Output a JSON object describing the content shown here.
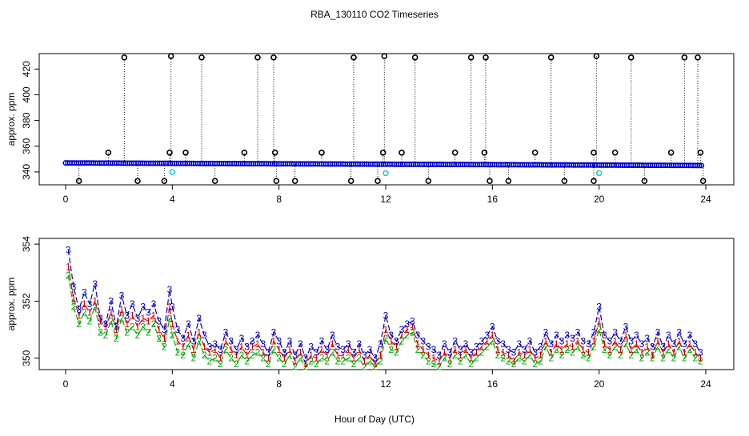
{
  "page": {
    "title": "RBA_130110  CO2 Timeseries",
    "xlabel": "Hour of Day (UTC)"
  },
  "colors": {
    "black": "#000000",
    "blue": "#0000cc",
    "green": "#00aa00",
    "red": "#dd0000",
    "cyan": "#00cccc"
  },
  "chart_data": [
    {
      "type": "scatter",
      "ylabel": "approx. ppm",
      "xlim": [
        0,
        24
      ],
      "ylim": [
        330,
        432
      ],
      "x_ticks": [
        "0",
        "4",
        "8",
        "12",
        "16",
        "20",
        "24"
      ],
      "y_ticks": [
        "340",
        "360",
        "380",
        "400",
        "420"
      ],
      "baseline": {
        "start": 347,
        "end": 345
      },
      "outliers_high": [
        [
          1.6,
          355
        ],
        [
          2.2,
          429
        ],
        [
          3.9,
          355
        ],
        [
          3.95,
          430
        ],
        [
          4.5,
          355
        ],
        [
          5.1,
          429
        ],
        [
          6.7,
          355
        ],
        [
          7.2,
          429
        ],
        [
          7.8,
          429
        ],
        [
          7.85,
          355
        ],
        [
          9.6,
          355
        ],
        [
          10.8,
          429
        ],
        [
          11.9,
          355
        ],
        [
          11.95,
          430
        ],
        [
          12.6,
          355
        ],
        [
          13.1,
          429
        ],
        [
          14.6,
          355
        ],
        [
          15.2,
          429
        ],
        [
          15.7,
          355
        ],
        [
          15.75,
          429
        ],
        [
          17.6,
          355
        ],
        [
          18.2,
          429
        ],
        [
          19.8,
          355
        ],
        [
          19.9,
          430
        ],
        [
          20.6,
          355
        ],
        [
          21.2,
          429
        ],
        [
          22.7,
          355
        ],
        [
          23.2,
          429
        ],
        [
          23.7,
          429
        ],
        [
          23.8,
          355
        ]
      ],
      "outliers_low": [
        [
          0.5,
          333
        ],
        [
          2.7,
          333
        ],
        [
          3.7,
          333
        ],
        [
          5.6,
          333
        ],
        [
          7.9,
          333
        ],
        [
          8.6,
          333
        ],
        [
          10.7,
          333
        ],
        [
          11.7,
          333
        ],
        [
          13.6,
          333
        ],
        [
          15.9,
          333
        ],
        [
          16.6,
          333
        ],
        [
          18.7,
          333
        ],
        [
          19.8,
          333
        ],
        [
          21.7,
          333
        ],
        [
          23.9,
          333
        ]
      ],
      "cyan_points": [
        [
          4.0,
          340
        ],
        [
          12.0,
          339
        ],
        [
          20.0,
          339
        ]
      ]
    },
    {
      "type": "line",
      "ylabel": "approx. ppm",
      "xlim": [
        0,
        24
      ],
      "ylim": [
        349.6,
        354.2
      ],
      "x_ticks": [
        "0",
        "4",
        "8",
        "12",
        "16",
        "20",
        "24"
      ],
      "y_ticks": [
        "350",
        "352",
        "354"
      ],
      "x": [
        0.1,
        0.3,
        0.5,
        0.7,
        0.9,
        1.1,
        1.3,
        1.5,
        1.7,
        1.9,
        2.1,
        2.3,
        2.5,
        2.7,
        2.9,
        3.1,
        3.3,
        3.5,
        3.7,
        3.9,
        4.0,
        4.2,
        4.4,
        4.6,
        4.8,
        5.0,
        5.2,
        5.4,
        5.6,
        5.8,
        6.0,
        6.2,
        6.4,
        6.6,
        6.8,
        7.0,
        7.2,
        7.4,
        7.6,
        7.8,
        8.0,
        8.2,
        8.4,
        8.6,
        8.8,
        9.0,
        9.2,
        9.4,
        9.6,
        9.8,
        10.0,
        10.2,
        10.4,
        10.6,
        10.8,
        11.0,
        11.2,
        11.4,
        11.6,
        11.8,
        12.0,
        12.2,
        12.4,
        12.6,
        12.8,
        13.0,
        13.2,
        13.4,
        13.6,
        13.8,
        14.0,
        14.2,
        14.4,
        14.6,
        14.8,
        15.0,
        15.2,
        15.4,
        15.6,
        15.8,
        16.0,
        16.2,
        16.4,
        16.6,
        16.8,
        17.0,
        17.2,
        17.4,
        17.6,
        17.8,
        18.0,
        18.2,
        18.4,
        18.6,
        18.8,
        19.0,
        19.2,
        19.4,
        19.6,
        19.8,
        20.0,
        20.2,
        20.4,
        20.6,
        20.8,
        21.0,
        21.2,
        21.4,
        21.6,
        21.8,
        22.0,
        22.2,
        22.4,
        22.6,
        22.8,
        23.0,
        23.2,
        23.4,
        23.6,
        23.8
      ],
      "series": [
        {
          "name": "3",
          "values": [
            353.8,
            352.5,
            351.7,
            352.3,
            351.9,
            352.6,
            351.4,
            351.2,
            352.0,
            351.1,
            352.2,
            351.5,
            351.9,
            351.4,
            351.8,
            351.6,
            351.9,
            351.3,
            351.0,
            352.4,
            351.8,
            351.0,
            350.7,
            351.2,
            350.6,
            351.4,
            350.8,
            350.4,
            350.5,
            350.3,
            350.9,
            350.6,
            350.3,
            350.7,
            350.4,
            350.6,
            350.8,
            350.5,
            350.2,
            350.9,
            350.6,
            350.2,
            350.6,
            350.1,
            350.5,
            350.0,
            350.4,
            350.2,
            350.6,
            350.3,
            350.8,
            350.4,
            350.3,
            350.5,
            350.2,
            350.5,
            350.1,
            350.3,
            350.0,
            350.5,
            351.5,
            350.8,
            350.6,
            351.0,
            351.2,
            351.3,
            350.8,
            350.6,
            350.4,
            350.3,
            350.1,
            350.5,
            350.2,
            350.6,
            350.3,
            350.5,
            350.2,
            350.4,
            350.6,
            350.8,
            351.1,
            350.6,
            350.5,
            350.3,
            350.2,
            350.5,
            350.3,
            350.6,
            350.2,
            350.4,
            350.9,
            350.5,
            350.8,
            350.6,
            350.8,
            350.7,
            350.9,
            350.6,
            350.5,
            350.9,
            351.8,
            350.8,
            350.6,
            350.9,
            350.6,
            351.1,
            350.6,
            350.8,
            350.5,
            350.7,
            350.4,
            350.9,
            350.4,
            350.8,
            350.5,
            350.9,
            350.5,
            350.8,
            350.5,
            350.2
          ]
        },
        {
          "name": "2",
          "values": [
            352.9,
            351.8,
            351.2,
            351.6,
            351.3,
            351.8,
            350.9,
            350.8,
            351.3,
            350.7,
            351.4,
            350.9,
            351.1,
            350.8,
            351.1,
            350.9,
            351.2,
            350.7,
            350.4,
            351.4,
            350.8,
            350.2,
            350.1,
            350.5,
            350.0,
            350.6,
            350.1,
            349.9,
            350.0,
            349.8,
            350.3,
            350.0,
            349.8,
            350.1,
            349.9,
            350.1,
            350.2,
            350.0,
            349.8,
            350.3,
            350.0,
            349.8,
            350.1,
            349.7,
            350.0,
            349.7,
            349.9,
            349.8,
            350.0,
            349.9,
            350.2,
            349.9,
            349.9,
            350.0,
            349.8,
            350.0,
            349.7,
            349.9,
            349.7,
            349.9,
            350.7,
            350.3,
            350.2,
            350.6,
            350.8,
            350.9,
            350.3,
            350.1,
            349.9,
            349.8,
            349.7,
            350.0,
            349.8,
            350.1,
            349.9,
            350.1,
            349.8,
            350.0,
            350.2,
            350.4,
            350.6,
            350.1,
            350.0,
            349.9,
            349.8,
            350.0,
            349.9,
            350.1,
            349.8,
            349.9,
            350.4,
            350.0,
            350.3,
            350.1,
            350.3,
            350.2,
            350.4,
            350.1,
            350.0,
            350.4,
            351.0,
            350.3,
            350.1,
            350.4,
            350.1,
            350.5,
            350.1,
            350.3,
            350.0,
            350.2,
            350.0,
            350.4,
            350.0,
            350.3,
            350.0,
            350.4,
            350.0,
            350.3,
            350.0,
            349.9
          ]
        },
        {
          "name": "1",
          "values": [
            353.2,
            352.1,
            351.5,
            351.9,
            351.6,
            352.0,
            351.3,
            351.1,
            351.6,
            351.0,
            351.7,
            351.2,
            351.5,
            351.1,
            351.4,
            351.3,
            351.5,
            351.0,
            350.7,
            351.8,
            351.2,
            350.6,
            350.4,
            350.8,
            350.3,
            350.9,
            350.4,
            350.2,
            350.3,
            350.0,
            350.6,
            350.3,
            350.1,
            350.4,
            350.1,
            350.4,
            350.5,
            350.2,
            350.0,
            350.6,
            350.3,
            350.0,
            350.3,
            349.9,
            350.2,
            349.8,
            350.1,
            350.0,
            350.3,
            350.1,
            350.5,
            350.1,
            350.1,
            350.3,
            350.0,
            350.3,
            349.9,
            350.1,
            349.8,
            350.1,
            351.0,
            350.6,
            350.4,
            350.8,
            351.0,
            351.1,
            350.5,
            350.3,
            350.1,
            350.0,
            349.9,
            350.2,
            350.0,
            350.3,
            350.1,
            350.3,
            350.0,
            350.2,
            350.4,
            350.6,
            350.8,
            350.3,
            350.2,
            350.1,
            349.9,
            350.2,
            350.1,
            350.3,
            350.0,
            350.1,
            350.6,
            350.2,
            350.5,
            350.3,
            350.5,
            350.4,
            350.6,
            350.3,
            350.2,
            350.6,
            351.3,
            350.5,
            350.3,
            350.6,
            350.3,
            350.8,
            350.3,
            350.5,
            350.2,
            350.4,
            350.1,
            350.6,
            350.2,
            350.5,
            350.2,
            350.6,
            350.2,
            350.5,
            350.2,
            350.0
          ]
        }
      ]
    }
  ]
}
